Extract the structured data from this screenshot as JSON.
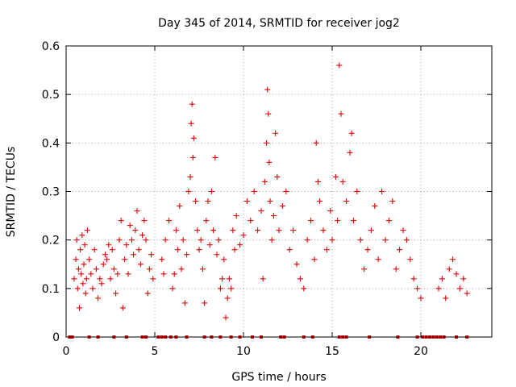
{
  "chart_data": {
    "type": "scatter",
    "title": "Day 345 of 2014, SRMTID for receiver jog2",
    "xlabel": "GPS time / hours",
    "ylabel": "SRMTID / TECUs",
    "xlim": [
      0,
      24
    ],
    "ylim": [
      0,
      0.6
    ],
    "x_ticks": [
      0,
      5,
      10,
      15,
      20
    ],
    "x_tick_labels": [
      "0",
      "5",
      "10",
      "15",
      "20"
    ],
    "y_ticks": [
      0,
      0.1,
      0.2,
      0.3,
      0.4,
      0.5,
      0.6
    ],
    "y_tick_labels": [
      "0",
      "0.1",
      "0.2",
      "0.3",
      "0.4",
      "0.5",
      "0.6"
    ],
    "grid": true,
    "marker": "+",
    "color": "#e00000",
    "series": [
      {
        "name": "SRMTID",
        "points": [
          [
            0.45,
            0.12
          ],
          [
            0.55,
            0.16
          ],
          [
            0.6,
            0.2
          ],
          [
            0.65,
            0.1
          ],
          [
            0.7,
            0.14
          ],
          [
            0.75,
            0.06
          ],
          [
            0.8,
            0.18
          ],
          [
            0.85,
            0.13
          ],
          [
            0.9,
            0.21
          ],
          [
            0.95,
            0.11
          ],
          [
            1.0,
            0.15
          ],
          [
            1.05,
            0.19
          ],
          [
            1.1,
            0.09
          ],
          [
            1.15,
            0.12
          ],
          [
            1.2,
            0.22
          ],
          [
            1.3,
            0.16
          ],
          [
            1.4,
            0.13
          ],
          [
            1.5,
            0.1
          ],
          [
            1.6,
            0.18
          ],
          [
            1.7,
            0.14
          ],
          [
            1.8,
            0.08
          ],
          [
            1.9,
            0.12
          ],
          [
            2.0,
            0.11
          ],
          [
            2.1,
            0.15
          ],
          [
            2.2,
            0.17
          ],
          [
            2.3,
            0.16
          ],
          [
            2.4,
            0.19
          ],
          [
            2.5,
            0.12
          ],
          [
            2.6,
            0.18
          ],
          [
            2.7,
            0.14
          ],
          [
            2.8,
            0.09
          ],
          [
            2.9,
            0.13
          ],
          [
            3.0,
            0.2
          ],
          [
            3.1,
            0.24
          ],
          [
            3.2,
            0.06
          ],
          [
            3.3,
            0.16
          ],
          [
            3.4,
            0.19
          ],
          [
            3.5,
            0.13
          ],
          [
            3.6,
            0.23
          ],
          [
            3.7,
            0.2
          ],
          [
            3.8,
            0.17
          ],
          [
            3.9,
            0.22
          ],
          [
            4.0,
            0.26
          ],
          [
            4.1,
            0.18
          ],
          [
            4.2,
            0.15
          ],
          [
            4.3,
            0.21
          ],
          [
            4.4,
            0.24
          ],
          [
            4.5,
            0.2
          ],
          [
            4.6,
            0.09
          ],
          [
            4.7,
            0.14
          ],
          [
            4.8,
            0.17
          ],
          [
            4.9,
            0.12
          ],
          [
            5.4,
            0.16
          ],
          [
            5.5,
            0.13
          ],
          [
            5.6,
            0.2
          ],
          [
            5.8,
            0.24
          ],
          [
            6.0,
            0.1
          ],
          [
            6.1,
            0.13
          ],
          [
            6.2,
            0.22
          ],
          [
            6.3,
            0.18
          ],
          [
            6.4,
            0.27
          ],
          [
            6.5,
            0.14
          ],
          [
            6.6,
            0.2
          ],
          [
            6.7,
            0.07
          ],
          [
            6.8,
            0.17
          ],
          [
            6.9,
            0.3
          ],
          [
            7.0,
            0.33
          ],
          [
            7.05,
            0.44
          ],
          [
            7.1,
            0.48
          ],
          [
            7.15,
            0.37
          ],
          [
            7.2,
            0.41
          ],
          [
            7.3,
            0.28
          ],
          [
            7.4,
            0.22
          ],
          [
            7.5,
            0.18
          ],
          [
            7.6,
            0.2
          ],
          [
            7.7,
            0.14
          ],
          [
            7.8,
            0.07
          ],
          [
            7.9,
            0.24
          ],
          [
            8.0,
            0.28
          ],
          [
            8.1,
            0.19
          ],
          [
            8.2,
            0.3
          ],
          [
            8.3,
            0.22
          ],
          [
            8.4,
            0.37
          ],
          [
            8.5,
            0.17
          ],
          [
            8.6,
            0.2
          ],
          [
            8.7,
            0.1
          ],
          [
            8.8,
            0.12
          ],
          [
            8.9,
            0.16
          ],
          [
            9.0,
            0.04
          ],
          [
            9.1,
            0.08
          ],
          [
            9.2,
            0.12
          ],
          [
            9.3,
            0.1
          ],
          [
            9.4,
            0.22
          ],
          [
            9.5,
            0.18
          ],
          [
            9.6,
            0.25
          ],
          [
            9.8,
            0.19
          ],
          [
            10.0,
            0.21
          ],
          [
            10.2,
            0.28
          ],
          [
            10.4,
            0.24
          ],
          [
            10.6,
            0.3
          ],
          [
            10.8,
            0.22
          ],
          [
            11.0,
            0.26
          ],
          [
            11.1,
            0.12
          ],
          [
            11.2,
            0.32
          ],
          [
            11.3,
            0.4
          ],
          [
            11.35,
            0.51
          ],
          [
            11.4,
            0.46
          ],
          [
            11.45,
            0.36
          ],
          [
            11.5,
            0.28
          ],
          [
            11.6,
            0.2
          ],
          [
            11.7,
            0.25
          ],
          [
            11.8,
            0.42
          ],
          [
            11.9,
            0.33
          ],
          [
            12.0,
            0.22
          ],
          [
            12.2,
            0.27
          ],
          [
            12.4,
            0.3
          ],
          [
            12.6,
            0.18
          ],
          [
            12.8,
            0.22
          ],
          [
            13.0,
            0.15
          ],
          [
            13.2,
            0.12
          ],
          [
            13.4,
            0.1
          ],
          [
            13.6,
            0.2
          ],
          [
            13.8,
            0.24
          ],
          [
            14.0,
            0.16
          ],
          [
            14.1,
            0.4
          ],
          [
            14.2,
            0.32
          ],
          [
            14.3,
            0.28
          ],
          [
            14.5,
            0.22
          ],
          [
            14.7,
            0.18
          ],
          [
            14.9,
            0.26
          ],
          [
            15.0,
            0.2
          ],
          [
            15.2,
            0.33
          ],
          [
            15.3,
            0.24
          ],
          [
            15.4,
            0.56
          ],
          [
            15.5,
            0.46
          ],
          [
            15.6,
            0.32
          ],
          [
            15.8,
            0.28
          ],
          [
            16.0,
            0.38
          ],
          [
            16.1,
            0.42
          ],
          [
            16.2,
            0.24
          ],
          [
            16.4,
            0.3
          ],
          [
            16.6,
            0.2
          ],
          [
            16.8,
            0.14
          ],
          [
            17.0,
            0.18
          ],
          [
            17.2,
            0.22
          ],
          [
            17.4,
            0.27
          ],
          [
            17.6,
            0.16
          ],
          [
            17.8,
            0.3
          ],
          [
            18.0,
            0.2
          ],
          [
            18.2,
            0.24
          ],
          [
            18.4,
            0.28
          ],
          [
            18.6,
            0.14
          ],
          [
            18.8,
            0.18
          ],
          [
            19.0,
            0.22
          ],
          [
            19.2,
            0.2
          ],
          [
            19.4,
            0.16
          ],
          [
            19.6,
            0.12
          ],
          [
            19.8,
            0.1
          ],
          [
            20.0,
            0.08
          ],
          [
            21.0,
            0.1
          ],
          [
            21.2,
            0.12
          ],
          [
            21.4,
            0.08
          ],
          [
            21.6,
            0.14
          ],
          [
            21.8,
            0.16
          ],
          [
            22.0,
            0.13
          ],
          [
            22.2,
            0.1
          ],
          [
            22.4,
            0.12
          ],
          [
            22.6,
            0.09
          ]
        ]
      }
    ],
    "zero_points_x": [
      0.2,
      0.35,
      1.3,
      1.8,
      2.7,
      3.4,
      4.3,
      4.5,
      5.2,
      5.4,
      5.6,
      5.9,
      6.2,
      6.8,
      7.8,
      8.2,
      8.7,
      9.3,
      9.8,
      10.5,
      11.0,
      12.1,
      12.3,
      13.4,
      13.9,
      15.4,
      15.6,
      15.8,
      17.1,
      18.7,
      19.8,
      20.1,
      20.3,
      20.5,
      20.7,
      20.9,
      21.1,
      21.3,
      22.0,
      22.6
    ]
  }
}
